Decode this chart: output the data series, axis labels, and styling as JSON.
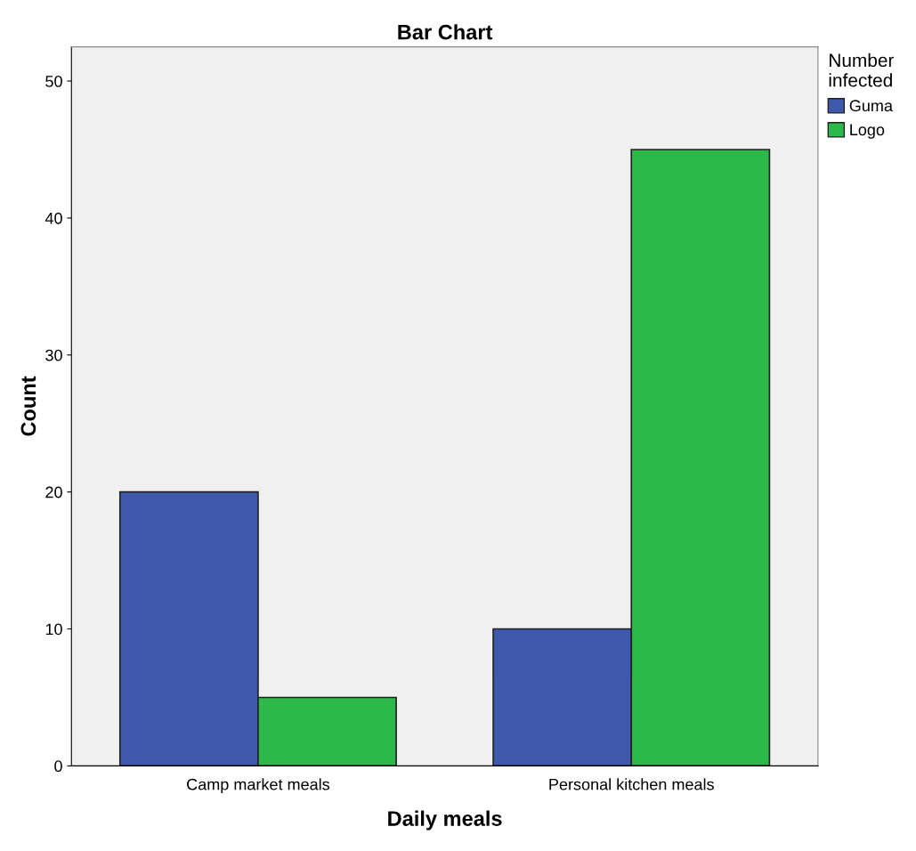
{
  "chart_data": {
    "type": "bar",
    "title": "Bar Chart",
    "xlabel": "Daily meals",
    "ylabel": "Count",
    "legend_title": "Number\ninfected",
    "categories": [
      "Camp market meals",
      "Personal kitchen meals"
    ],
    "series": [
      {
        "name": "Guma",
        "color": "#3e58ac",
        "values": [
          20,
          10
        ]
      },
      {
        "name": "Logo",
        "color": "#2db84a",
        "values": [
          5,
          45
        ]
      }
    ],
    "ylim": [
      0,
      52.5
    ],
    "yticks": [
      0,
      10,
      20,
      30,
      40,
      50
    ],
    "grid": false,
    "legend": "top right"
  }
}
